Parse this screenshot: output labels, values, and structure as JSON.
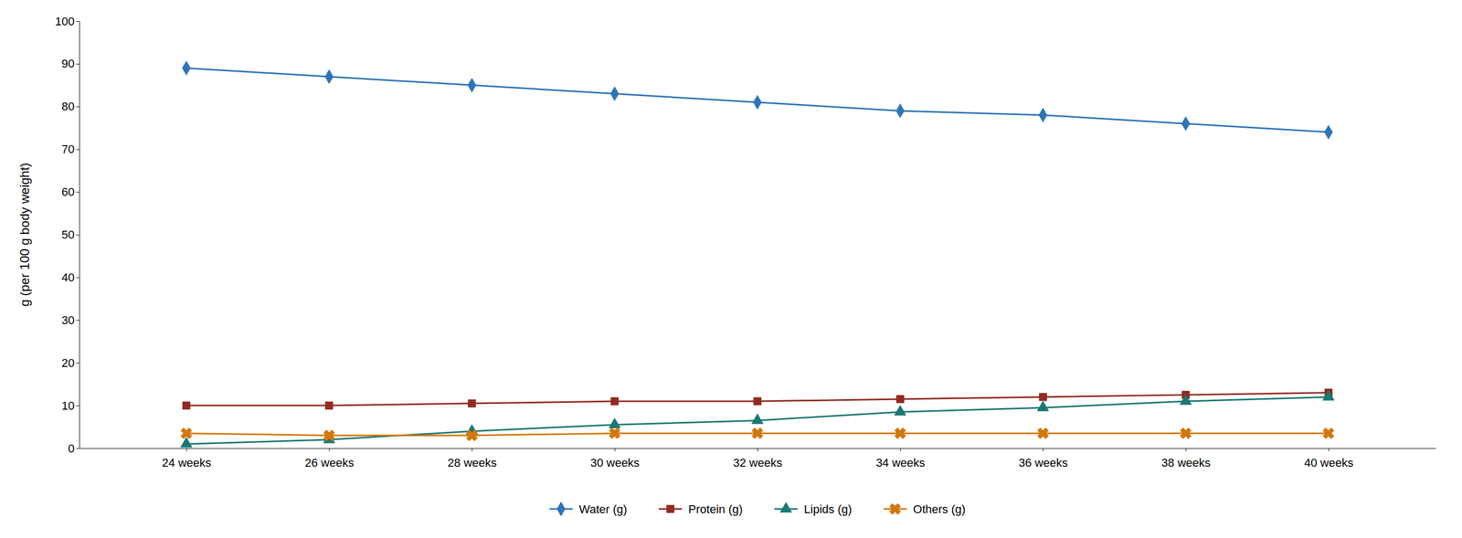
{
  "chart_data": {
    "type": "line",
    "y_label": "g (per 100 g body weight)",
    "x": [
      24,
      26,
      28,
      30,
      32,
      34,
      36,
      38,
      40
    ],
    "xlim": [
      22.5,
      41.5
    ],
    "xticks": [
      {
        "value": 24,
        "label": "24 weeks"
      },
      {
        "value": 26,
        "label": "26 weeks"
      },
      {
        "value": 28,
        "label": "28 weeks"
      },
      {
        "value": 30,
        "label": "30 weeks"
      },
      {
        "value": 32,
        "label": "32 weeks"
      },
      {
        "value": 34,
        "label": "34 weeks"
      },
      {
        "value": 36,
        "label": "36 weeks"
      },
      {
        "value": 38,
        "label": "38 weeks"
      },
      {
        "value": 40,
        "label": "40 weeks"
      }
    ],
    "ylim": [
      0,
      100
    ],
    "yticks": [
      0,
      10,
      20,
      30,
      40,
      50,
      60,
      70,
      80,
      90,
      100
    ],
    "grid": false,
    "legend": "bottom",
    "series": [
      {
        "name": "Water (g)",
        "color": "#2F75B6",
        "marker": "diamond",
        "values": [
          89,
          87,
          85,
          83,
          81,
          79,
          78,
          76,
          74
        ]
      },
      {
        "name": "Protein (g)",
        "color": "#922B21",
        "marker": "square",
        "values": [
          10,
          10,
          10.5,
          11,
          11,
          11.5,
          12,
          12.5,
          13
        ]
      },
      {
        "name": "Lipids (g)",
        "color": "#1A7874",
        "marker": "triangle",
        "values": [
          1,
          2,
          4,
          5.5,
          6.5,
          8.5,
          9.5,
          11,
          12
        ]
      },
      {
        "name": "Others (g)",
        "color": "#D4770A",
        "marker": "x",
        "values": [
          3.5,
          3,
          3,
          3.5,
          3.5,
          3.5,
          3.5,
          3.5,
          3.5
        ]
      }
    ]
  }
}
